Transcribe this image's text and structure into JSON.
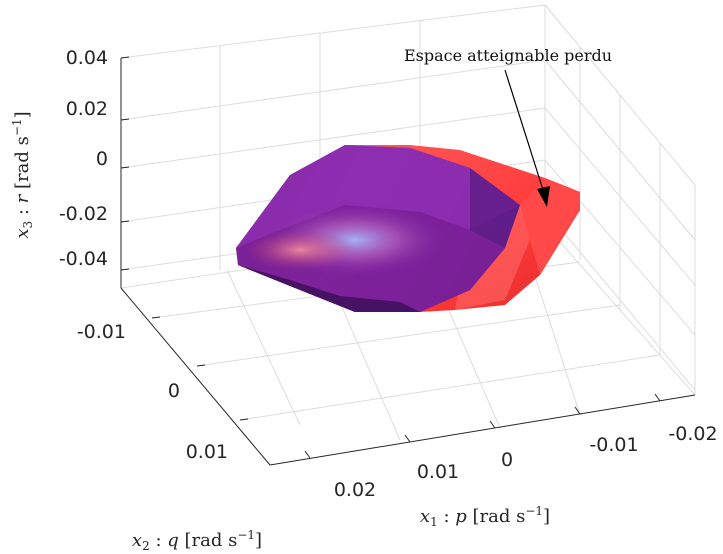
{
  "chart_data": {
    "type": "surface3d",
    "title": "",
    "axes": {
      "x": {
        "label": "x_1 : p [rad s^-1]",
        "label_parts": [
          "x",
          "1",
          " : ",
          "p",
          " [rad s",
          "−1",
          "]"
        ],
        "ticks": [
          -0.02,
          -0.01,
          0,
          0.01,
          0.02
        ],
        "tick_labels": [
          "-0.02",
          "-0.01",
          "0",
          "0.01",
          "0.02"
        ],
        "lim": [
          -0.025,
          0.025
        ]
      },
      "y": {
        "label": "x_2 : q [rad s^-1]",
        "label_parts": [
          "x",
          "2",
          " : ",
          "q",
          " [rad s",
          "−1",
          "]"
        ],
        "ticks": [
          -0.01,
          0,
          0.01
        ],
        "tick_labels": [
          "-0.01",
          "0",
          "0.01"
        ],
        "lim": [
          -0.015,
          0.015
        ]
      },
      "z": {
        "label": "x_3 : r [rad s^-1]",
        "label_parts": [
          "x",
          "3",
          " : ",
          "r",
          " [rad s",
          "−1",
          "]"
        ],
        "ticks": [
          -0.04,
          -0.02,
          0,
          0.02,
          0.04
        ],
        "tick_labels": [
          "-0.04",
          "-0.02",
          "0",
          "0.02",
          "0.04"
        ],
        "lim": [
          -0.045,
          0.045
        ]
      }
    },
    "grid": true,
    "series": [
      {
        "kind": "attainable-set-full",
        "color": "#ff3b3b"
      },
      {
        "kind": "attainable-set-reduced",
        "color": "#7a1aa0"
      }
    ],
    "annotations": [
      {
        "text": "Espace atteignable perdu",
        "points_to": "red-region"
      }
    ]
  }
}
